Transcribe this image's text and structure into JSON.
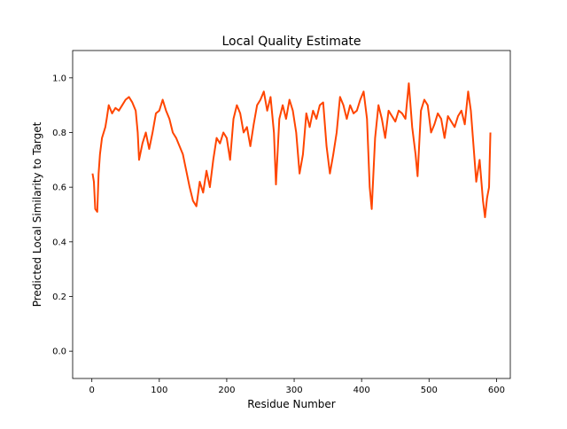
{
  "chart_data": {
    "type": "line",
    "title": "Local Quality Estimate",
    "x_label": "Residue Number",
    "y_label": "Predicted Local Similarity to Target",
    "xlim": [
      -28.5,
      620.5
    ],
    "ylim": [
      -0.1,
      1.1
    ],
    "xticks": [
      0,
      100,
      200,
      300,
      400,
      500,
      600
    ],
    "yticks": [
      {
        "value": 0,
        "label": "0.0"
      },
      {
        "value": 0.2,
        "label": "0.2"
      },
      {
        "value": 0.4,
        "label": "0.4"
      },
      {
        "value": 0.6,
        "label": "0.6"
      },
      {
        "value": 0.8,
        "label": "0.8"
      },
      {
        "value": 1,
        "label": "1.0"
      }
    ],
    "color": "#ff4500",
    "x": [
      1,
      3,
      5,
      8,
      10,
      12,
      15,
      20,
      22,
      25,
      30,
      35,
      40,
      45,
      50,
      55,
      60,
      65,
      68,
      70,
      75,
      80,
      85,
      90,
      95,
      100,
      105,
      110,
      115,
      120,
      125,
      130,
      135,
      140,
      145,
      150,
      155,
      160,
      165,
      170,
      175,
      180,
      185,
      190,
      195,
      200,
      205,
      210,
      215,
      220,
      225,
      230,
      235,
      240,
      245,
      250,
      255,
      260,
      265,
      270,
      273,
      278,
      283,
      288,
      293,
      298,
      303,
      308,
      313,
      318,
      323,
      328,
      333,
      338,
      343,
      348,
      353,
      358,
      363,
      368,
      373,
      378,
      383,
      388,
      393,
      398,
      403,
      408,
      412,
      415,
      420,
      425,
      430,
      435,
      440,
      445,
      450,
      455,
      460,
      465,
      470,
      475,
      480,
      483,
      488,
      493,
      498,
      503,
      508,
      513,
      518,
      523,
      528,
      533,
      538,
      543,
      548,
      553,
      558,
      562,
      566,
      570,
      575,
      580,
      583,
      586,
      589,
      591
    ],
    "values": [
      0.65,
      0.62,
      0.52,
      0.51,
      0.65,
      0.72,
      0.78,
      0.82,
      0.85,
      0.9,
      0.87,
      0.89,
      0.88,
      0.9,
      0.92,
      0.93,
      0.91,
      0.88,
      0.8,
      0.7,
      0.76,
      0.8,
      0.74,
      0.8,
      0.87,
      0.88,
      0.92,
      0.88,
      0.85,
      0.8,
      0.78,
      0.75,
      0.72,
      0.66,
      0.6,
      0.55,
      0.53,
      0.62,
      0.58,
      0.66,
      0.6,
      0.7,
      0.78,
      0.76,
      0.8,
      0.78,
      0.7,
      0.85,
      0.9,
      0.87,
      0.8,
      0.82,
      0.75,
      0.83,
      0.9,
      0.92,
      0.95,
      0.88,
      0.93,
      0.8,
      0.61,
      0.85,
      0.9,
      0.85,
      0.92,
      0.88,
      0.8,
      0.65,
      0.72,
      0.87,
      0.82,
      0.88,
      0.85,
      0.9,
      0.91,
      0.75,
      0.65,
      0.72,
      0.8,
      0.93,
      0.9,
      0.85,
      0.9,
      0.87,
      0.88,
      0.92,
      0.95,
      0.85,
      0.6,
      0.52,
      0.78,
      0.9,
      0.85,
      0.78,
      0.88,
      0.86,
      0.84,
      0.88,
      0.87,
      0.85,
      0.98,
      0.82,
      0.72,
      0.64,
      0.88,
      0.92,
      0.9,
      0.8,
      0.83,
      0.87,
      0.85,
      0.78,
      0.86,
      0.84,
      0.82,
      0.86,
      0.88,
      0.83,
      0.95,
      0.88,
      0.75,
      0.62,
      0.7,
      0.55,
      0.49,
      0.56,
      0.6,
      0.8
    ]
  }
}
